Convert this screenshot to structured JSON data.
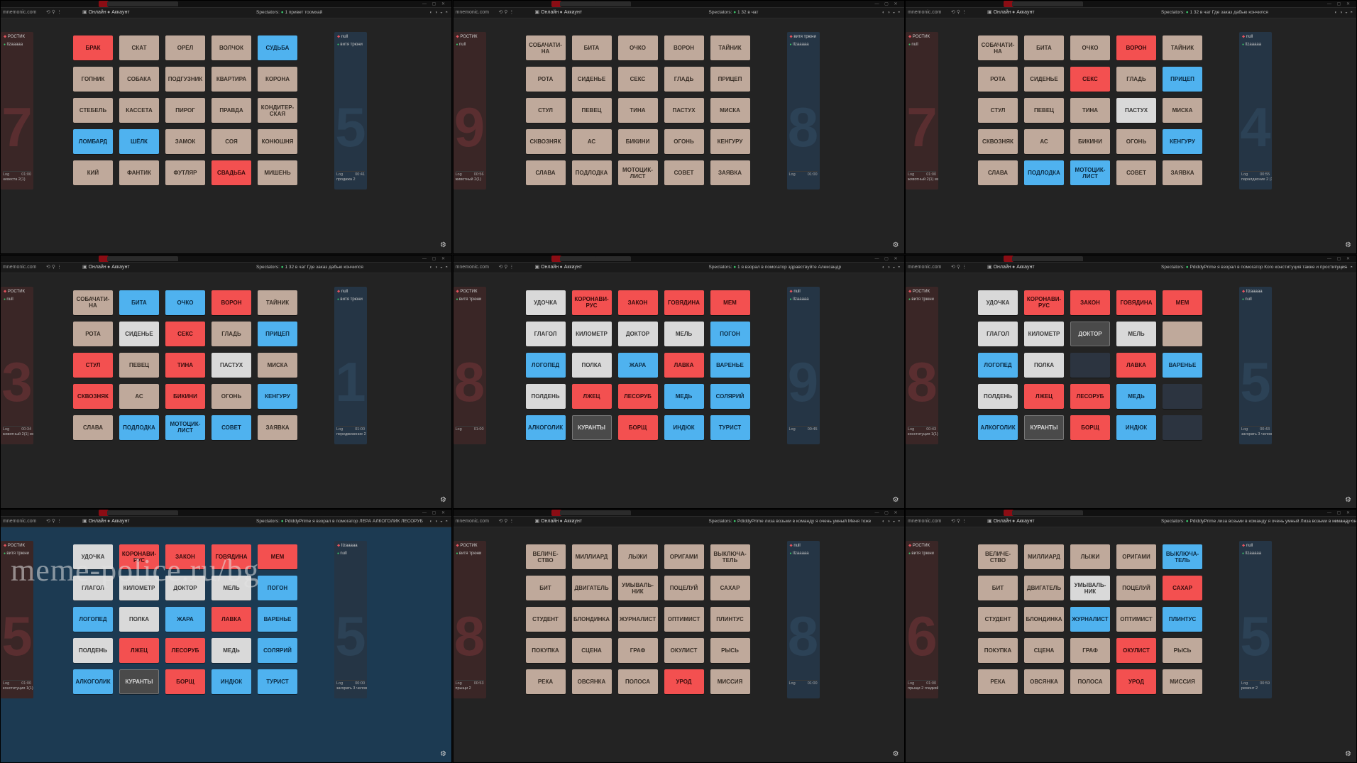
{
  "spectators": "Spectators:",
  "panes": [
    {
      "url": "mnemonic.com",
      "rules_label": "Онлайн",
      "account_label": "Аккаунт",
      "spectators_extra": "1  привет тоомхай",
      "left": {
        "team": "РОСТИК",
        "member": "Ilzaaaaa",
        "bignum": "7",
        "log": "Log",
        "time": "01:00",
        "hint": "невеста 2(1)"
      },
      "right": {
        "team": "null",
        "member": "витя трюни",
        "bignum": "5",
        "log": "Log",
        "time": "00:41",
        "hint": "продажа 2"
      },
      "cards": [
        [
          "БРАК",
          "red"
        ],
        [
          "СКАТ",
          ""
        ],
        [
          "ОРЁЛ",
          ""
        ],
        [
          "ВОЛЧОК",
          ""
        ],
        [
          "СУДЬБА",
          "blue"
        ],
        [
          "ГОПНИК",
          ""
        ],
        [
          "СОБАКА",
          ""
        ],
        [
          "ПОДГУЗНИК",
          ""
        ],
        [
          "КВАРТИРА",
          ""
        ],
        [
          "КОРОНА",
          ""
        ],
        [
          "СТЕБЕЛЬ",
          ""
        ],
        [
          "КАССЕТА",
          ""
        ],
        [
          "ПИРОГ",
          ""
        ],
        [
          "ПРАВДА",
          ""
        ],
        [
          "КОНДИТЕР-СКАЯ",
          ""
        ],
        [
          "ЛОМБАРД",
          "blue"
        ],
        [
          "ШЁЛК",
          "blue"
        ],
        [
          "ЗАМОК",
          ""
        ],
        [
          "СОЯ",
          ""
        ],
        [
          "КОНЮШНЯ",
          ""
        ],
        [
          "КИЙ",
          ""
        ],
        [
          "ФАНТИК",
          ""
        ],
        [
          "ФУТЛЯР",
          ""
        ],
        [
          "СВАДЬБА",
          "red"
        ],
        [
          "МИШЕНЬ",
          ""
        ]
      ]
    },
    {
      "url": "mnemonic.com",
      "rules_label": "Онлайн",
      "account_label": "Аккаунт",
      "spectators_extra": "1  32 в чат",
      "left": {
        "team": "РОСТИК",
        "member": "null",
        "bignum": "9",
        "log": "Log",
        "time": "00:56",
        "hint": "животный 2(1)"
      },
      "right": {
        "team": "витя трюни",
        "member": "Ilzaaaaa",
        "bignum": "8",
        "log": "Log",
        "time": "01:00",
        "hint": ""
      },
      "cards": [
        [
          "СОБАЧАТИ-НА",
          ""
        ],
        [
          "БИТА",
          ""
        ],
        [
          "ОЧКО",
          ""
        ],
        [
          "ВОРОН",
          ""
        ],
        [
          "ТАЙНИК",
          ""
        ],
        [
          "РОТА",
          ""
        ],
        [
          "СИДЕНЬЕ",
          ""
        ],
        [
          "СЕКС",
          ""
        ],
        [
          "ГЛАДЬ",
          ""
        ],
        [
          "ПРИЦЕП",
          ""
        ],
        [
          "СТУЛ",
          ""
        ],
        [
          "ПЕВЕЦ",
          ""
        ],
        [
          "ТИНА",
          ""
        ],
        [
          "ПАСТУХ",
          ""
        ],
        [
          "МИСКА",
          ""
        ],
        [
          "СКВОЗНЯК",
          ""
        ],
        [
          "АС",
          ""
        ],
        [
          "БИКИНИ",
          ""
        ],
        [
          "ОГОНЬ",
          ""
        ],
        [
          "КЕНГУРУ",
          ""
        ],
        [
          "СЛАВА",
          ""
        ],
        [
          "ПОДЛОДКА",
          ""
        ],
        [
          "МОТОЦИК-ЛИСТ",
          ""
        ],
        [
          "СОВЕТ",
          ""
        ],
        [
          "ЗАЯВКА",
          ""
        ]
      ]
    },
    {
      "url": "mnemonic.com",
      "rules_label": "Онлайн",
      "account_label": "Аккаунт",
      "spectators_extra": "1  32 в чат  Где заказ дабью кончился",
      "left": {
        "team": "РОСТИК",
        "member": "null",
        "bignum": "7",
        "log": "Log",
        "time": "01:00",
        "hint": "животный 2(1) море 1 2"
      },
      "right": {
        "team": "null",
        "member": "Ilzaaaaa",
        "bignum": "4",
        "log": "Log",
        "time": "00:55",
        "hint": "паралдисние 2 (1)"
      },
      "cards": [
        [
          "СОБАЧАТИ-НА",
          ""
        ],
        [
          "БИТА",
          ""
        ],
        [
          "ОЧКО",
          ""
        ],
        [
          "ВОРОН",
          "red"
        ],
        [
          "ТАЙНИК",
          ""
        ],
        [
          "РОТА",
          ""
        ],
        [
          "СИДЕНЬЕ",
          ""
        ],
        [
          "СЕКС",
          "red"
        ],
        [
          "ГЛАДЬ",
          ""
        ],
        [
          "ПРИЦЕП",
          "blue"
        ],
        [
          "СТУЛ",
          ""
        ],
        [
          "ПЕВЕЦ",
          ""
        ],
        [
          "ТИНА",
          ""
        ],
        [
          "ПАСТУХ",
          "white"
        ],
        [
          "МИСКА",
          ""
        ],
        [
          "СКВОЗНЯК",
          ""
        ],
        [
          "АС",
          ""
        ],
        [
          "БИКИНИ",
          ""
        ],
        [
          "ОГОНЬ",
          ""
        ],
        [
          "КЕНГУРУ",
          "blue"
        ],
        [
          "СЛАВА",
          ""
        ],
        [
          "ПОДЛОДКА",
          "blue"
        ],
        [
          "МОТОЦИК-ЛИСТ",
          "blue"
        ],
        [
          "СОВЕТ",
          ""
        ],
        [
          "ЗАЯВКА",
          ""
        ]
      ]
    },
    {
      "url": "mnemonic.com",
      "rules_label": "Онлайн",
      "account_label": "Аккаунт",
      "spectators_extra": "1  32 в чат  Где заказ дабью кончился",
      "left": {
        "team": "РОСТИК",
        "member": "null",
        "bignum": "3",
        "log": "Log",
        "time": "00:34",
        "hint": "животный 2(1) море 1 2 мебель 0(1) 2 2"
      },
      "right": {
        "team": "null",
        "member": "витя трюни",
        "bignum": "1",
        "log": "Log",
        "time": "01:00",
        "hint": "передвижение 2 (1) бомбон 1(1) помощь 1"
      },
      "cards": [
        [
          "СОБАЧАТИ-НА",
          ""
        ],
        [
          "БИТА",
          "blue"
        ],
        [
          "ОЧКО",
          "blue"
        ],
        [
          "ВОРОН",
          "red"
        ],
        [
          "ТАЙНИК",
          ""
        ],
        [
          "РОТА",
          ""
        ],
        [
          "СИДЕНЬЕ",
          "white"
        ],
        [
          "СЕКС",
          "red"
        ],
        [
          "ГЛАДЬ",
          ""
        ],
        [
          "ПРИЦЕП",
          "blue"
        ],
        [
          "СТУЛ",
          "red"
        ],
        [
          "ПЕВЕЦ",
          ""
        ],
        [
          "ТИНА",
          "red"
        ],
        [
          "ПАСТУХ",
          "white"
        ],
        [
          "МИСКА",
          ""
        ],
        [
          "СКВОЗНЯК",
          "red"
        ],
        [
          "АС",
          ""
        ],
        [
          "БИКИНИ",
          "red"
        ],
        [
          "ОГОНЬ",
          ""
        ],
        [
          "КЕНГУРУ",
          "blue"
        ],
        [
          "СЛАВА",
          ""
        ],
        [
          "ПОДЛОДКА",
          "blue"
        ],
        [
          "МОТОЦИК-ЛИСТ",
          "blue"
        ],
        [
          "СОВЕТ",
          "blue"
        ],
        [
          "ЗАЯВКА",
          ""
        ]
      ]
    },
    {
      "url": "mnemonic.com",
      "rules_label": "Онлайн",
      "account_label": "Аккаунт",
      "spectators_extra": "1  я взорал в помогатор  здравствуйте Александр",
      "left": {
        "team": "РОСТИК",
        "member": "витя трюни",
        "bignum": "8",
        "log": "Log",
        "time": "01:00",
        "hint": ""
      },
      "right": {
        "team": "null",
        "member": "Ilzaaaaa",
        "bignum": "9",
        "log": "Log",
        "time": "00:45",
        "hint": ""
      },
      "cards": [
        [
          "УДОЧКА",
          "white"
        ],
        [
          "КОРОНАВИ-РУС",
          "red"
        ],
        [
          "ЗАКОН",
          "red"
        ],
        [
          "ГОВЯДИНА",
          "red"
        ],
        [
          "МЕМ",
          "red"
        ],
        [
          "ГЛАГОЛ",
          "white"
        ],
        [
          "КИЛОМЕТР",
          "white"
        ],
        [
          "ДОКТОР",
          "white"
        ],
        [
          "МЕЛЬ",
          "white"
        ],
        [
          "ПОГОН",
          "blue"
        ],
        [
          "ЛОГОПЕД",
          "blue"
        ],
        [
          "ПОЛКА",
          "white"
        ],
        [
          "ЖАРА",
          "blue"
        ],
        [
          "ЛАВКА",
          "red"
        ],
        [
          "ВАРЕНЬЕ",
          "blue"
        ],
        [
          "ПОЛДЕНЬ",
          "white"
        ],
        [
          "ЛЖЕЦ",
          "red"
        ],
        [
          "ЛЕСОРУБ",
          "red"
        ],
        [
          "МЕДЬ",
          "blue"
        ],
        [
          "СОЛЯРИЙ",
          "blue"
        ],
        [
          "АЛКОГОЛИК",
          "blue"
        ],
        [
          "КУРАНТЫ",
          "black"
        ],
        [
          "БОРЩ",
          "red"
        ],
        [
          "ИНДЮК",
          "blue"
        ],
        [
          "ТУРИСТ",
          "blue"
        ]
      ]
    },
    {
      "url": "mnemonic.com",
      "rules_label": "Онлайн",
      "account_label": "Аккаунт",
      "spectators_extra": "PdiddyPrime  я взорал в помогатор  Кого конституция также и проституция",
      "left": {
        "team": "РОСТИК",
        "member": "витя трюни",
        "bignum": "8",
        "log": "Log",
        "time": "00:43",
        "hint": "конституция 1(1)"
      },
      "right": {
        "team": "Ilzaaaaa",
        "member": "null",
        "bignum": "5",
        "log": "Log",
        "time": "00:43",
        "hint": "загорать 3 человек 2"
      },
      "cards": [
        [
          "УДОЧКА",
          "white"
        ],
        [
          "КОРОНАВИ-РУС",
          "red"
        ],
        [
          "ЗАКОН",
          "red"
        ],
        [
          "ГОВЯДИНА",
          "red"
        ],
        [
          "МЕМ",
          "red"
        ],
        [
          "ГЛАГОЛ",
          "white"
        ],
        [
          "КИЛОМЕТР",
          "white"
        ],
        [
          "ДОКТОР",
          "black"
        ],
        [
          "МЕЛЬ",
          "white"
        ],
        [
          "",
          ""
        ],
        [
          "ЛОГОПЕД",
          "blue"
        ],
        [
          "ПОЛКА",
          "white"
        ],
        [
          "",
          "dark"
        ],
        [
          "ЛАВКА",
          "red"
        ],
        [
          "ВАРЕНЬЕ",
          "blue"
        ],
        [
          "ПОЛДЕНЬ",
          "white"
        ],
        [
          "ЛЖЕЦ",
          "red"
        ],
        [
          "ЛЕСОРУБ",
          "red"
        ],
        [
          "МЕДЬ",
          "blue"
        ],
        [
          "",
          "dark"
        ],
        [
          "АЛКОГОЛИК",
          "blue"
        ],
        [
          "КУРАНТЫ",
          "black"
        ],
        [
          "БОРЩ",
          "red"
        ],
        [
          "ИНДЮК",
          "blue"
        ],
        [
          "",
          "dark"
        ]
      ]
    },
    {
      "url": "mnemonic.com",
      "rules_label": "Онлайн",
      "account_label": "Аккаунт",
      "spectators_extra": "PdiddyPrime  я взорал в помогатор  ЛЕРА АЛКОГОЛИК ЛЕСОРУБ",
      "left": {
        "team": "РОСТИК",
        "member": "витя трюни",
        "bignum": "5",
        "log": "Log",
        "time": "01:00",
        "hint": "конституция 1(1) лера 1(1) 2"
      },
      "right": {
        "team": "Ilzaaaaa",
        "member": "null",
        "bignum": "5",
        "log": "Log",
        "time": "00:00",
        "hint": "загорать 3 человек 2"
      },
      "cards": [
        [
          "УДОЧКА",
          "white"
        ],
        [
          "КОРОНАВИ-РУС",
          "red"
        ],
        [
          "ЗАКОН",
          "red"
        ],
        [
          "ГОВЯДИНА",
          "red"
        ],
        [
          "МЕМ",
          "red"
        ],
        [
          "ГЛАГОЛ",
          "white"
        ],
        [
          "КИЛОМЕТР",
          "white"
        ],
        [
          "ДОКТОР",
          "white"
        ],
        [
          "МЕЛЬ",
          "white"
        ],
        [
          "ПОГОН",
          "blue"
        ],
        [
          "ЛОГОПЕД",
          "blue"
        ],
        [
          "ПОЛКА",
          "white"
        ],
        [
          "ЖАРА",
          "blue"
        ],
        [
          "ЛАВКА",
          "red"
        ],
        [
          "ВАРЕНЬЕ",
          "blue"
        ],
        [
          "ПОЛДЕНЬ",
          "white"
        ],
        [
          "ЛЖЕЦ",
          "red"
        ],
        [
          "ЛЕСОРУБ",
          "red"
        ],
        [
          "МЕДЬ",
          "white"
        ],
        [
          "СОЛЯРИЙ",
          "blue"
        ],
        [
          "АЛКОГОЛИК",
          "blue"
        ],
        [
          "КУРАНТЫ",
          "black"
        ],
        [
          "БОРЩ",
          "red"
        ],
        [
          "ИНДЮК",
          "blue"
        ],
        [
          "ТУРИСТ",
          "blue"
        ]
      ]
    },
    {
      "url": "mnemonic.com",
      "rules_label": "Онлайн",
      "account_label": "Аккаунт",
      "spectators_extra": "PdiddyPrime  лиза возьми в команду я очень умный  Меня тоже",
      "left": {
        "team": "РОСТИК",
        "member": "витя трюни",
        "bignum": "8",
        "log": "Log",
        "time": "00:53",
        "hint": "прыщи 2"
      },
      "right": {
        "team": "null",
        "member": "Ilzaaaaa",
        "bignum": "8",
        "log": "Log",
        "time": "01:00",
        "hint": ""
      },
      "cards": [
        [
          "ВЕЛИЧЕ-СТВО",
          ""
        ],
        [
          "МИЛЛИАРД",
          ""
        ],
        [
          "ЛЫЖИ",
          ""
        ],
        [
          "ОРИГАМИ",
          ""
        ],
        [
          "ВЫКЛЮЧА-ТЕЛЬ",
          ""
        ],
        [
          "БИТ",
          ""
        ],
        [
          "ДВИГАТЕЛЬ",
          ""
        ],
        [
          "УМЫВАЛЬ-НИК",
          ""
        ],
        [
          "ПОЦЕЛУЙ",
          ""
        ],
        [
          "САХАР",
          ""
        ],
        [
          "СТУДЕНТ",
          ""
        ],
        [
          "БЛОНДИНКА",
          ""
        ],
        [
          "ЖУРНАЛИСТ",
          ""
        ],
        [
          "ОПТИМИСТ",
          ""
        ],
        [
          "ПЛИНТУС",
          ""
        ],
        [
          "ПОКУПКА",
          ""
        ],
        [
          "СЦЕНА",
          ""
        ],
        [
          "ГРАФ",
          ""
        ],
        [
          "ОКУЛИСТ",
          ""
        ],
        [
          "РЫСЬ",
          ""
        ],
        [
          "РЕКА",
          ""
        ],
        [
          "ОВСЯНКА",
          ""
        ],
        [
          "ПОЛОСА",
          ""
        ],
        [
          "УРОД",
          "red"
        ],
        [
          "МИССИЯ",
          ""
        ]
      ]
    },
    {
      "url": "mnemonic.com",
      "rules_label": "Онлайн",
      "account_label": "Аккаунт",
      "spectators_extra": "PdiddyPrime  лиза возьми в команду я очень умный  Лиза возьми в команду он раз умный покер",
      "left": {
        "team": "РОСТИК",
        "member": "витя трюни",
        "bignum": "6",
        "log": "Log",
        "time": "01:00",
        "hint": "прыщи 2 гладкий 1 2"
      },
      "right": {
        "team": "null",
        "member": "Ilzaaaaa",
        "bignum": "5",
        "log": "Log",
        "time": "00:59",
        "hint": "ремонт 2"
      },
      "cards": [
        [
          "ВЕЛИЧЕ-СТВО",
          ""
        ],
        [
          "МИЛЛИАРД",
          ""
        ],
        [
          "ЛЫЖИ",
          ""
        ],
        [
          "ОРИГАМИ",
          ""
        ],
        [
          "ВЫКЛЮЧА-ТЕЛЬ",
          "blue"
        ],
        [
          "БИТ",
          ""
        ],
        [
          "ДВИГАТЕЛЬ",
          ""
        ],
        [
          "УМЫВАЛЬ-НИК",
          "white"
        ],
        [
          "ПОЦЕЛУЙ",
          ""
        ],
        [
          "САХАР",
          "red"
        ],
        [
          "СТУДЕНТ",
          ""
        ],
        [
          "БЛОНДИНКА",
          ""
        ],
        [
          "ЖУРНАЛИСТ",
          "blue"
        ],
        [
          "ОПТИМИСТ",
          ""
        ],
        [
          "ПЛИНТУС",
          "blue"
        ],
        [
          "ПОКУПКА",
          ""
        ],
        [
          "СЦЕНА",
          ""
        ],
        [
          "ГРАФ",
          ""
        ],
        [
          "ОКУЛИСТ",
          "red"
        ],
        [
          "РЫСЬ",
          ""
        ],
        [
          "РЕКА",
          ""
        ],
        [
          "ОВСЯНКА",
          ""
        ],
        [
          "ПОЛОСА",
          ""
        ],
        [
          "УРОД",
          "red"
        ],
        [
          "МИССИЯ",
          ""
        ]
      ]
    }
  ],
  "watermark": "meme-police.ru/bg",
  "gear_icon": "gear-icon"
}
